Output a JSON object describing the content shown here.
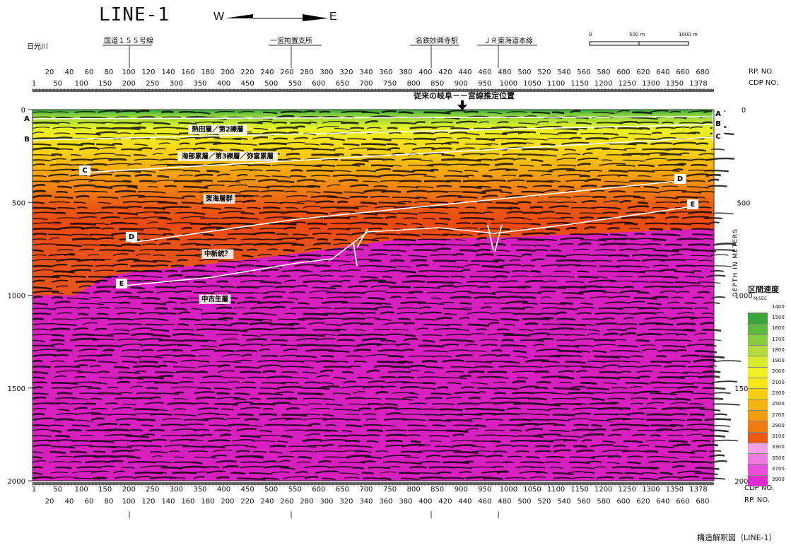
{
  "title": "LINE-1",
  "direction": {
    "west": "W",
    "east": "E"
  },
  "landmarks": [
    {
      "label": "日光川"
    },
    {
      "label": "国道１５５号線"
    },
    {
      "label": "一宮拘置支所"
    },
    {
      "label": "名鉄妙興寺駅"
    },
    {
      "label": "ＪＲ東海道本線"
    }
  ],
  "scale_bar": {
    "labels": [
      "0",
      "500 m",
      "1000 m"
    ]
  },
  "rp_label": "RP. NO.",
  "cdp_label": "CDP NO.",
  "rp_ticks": [
    "20",
    "40",
    "60",
    "80",
    "100",
    "120",
    "140",
    "160",
    "180",
    "200",
    "220",
    "240",
    "260",
    "280",
    "300",
    "320",
    "340",
    "360",
    "380",
    "400",
    "420",
    "440",
    "460",
    "480",
    "500",
    "520",
    "540",
    "560",
    "580",
    "600",
    "620",
    "640",
    "660",
    "680"
  ],
  "cdp_ticks": [
    "1",
    "50",
    "100",
    "150",
    "200",
    "250",
    "300",
    "350",
    "400",
    "450",
    "500",
    "550",
    "600",
    "650",
    "700",
    "750",
    "800",
    "850",
    "900",
    "950",
    "1000",
    "1050",
    "1100",
    "1150",
    "1200",
    "1250",
    "1300",
    "1350",
    "1378"
  ],
  "fault_note": "従来の岐阜－－宮線推定位置",
  "depth_axis": {
    "label": "DEPTH IN METERS",
    "ticks": [
      "0",
      "500",
      "1000",
      "1500",
      "2000"
    ]
  },
  "horizons": [
    "A",
    "B",
    "C",
    "D",
    "E"
  ],
  "units": [
    {
      "label": "熱田層／第2礫層"
    },
    {
      "label": "海部累層／第3礫層／弥富累層"
    },
    {
      "label": "東海層群"
    },
    {
      "label": "中新統？"
    },
    {
      "label": "中古生層"
    }
  ],
  "legend": {
    "title": "区間速度",
    "unit": "M/SEC",
    "entries": [
      {
        "value": "1400",
        "color": "#ffffff"
      },
      {
        "value": "1500",
        "color": "#3aa43a"
      },
      {
        "value": "1600",
        "color": "#5cbb3c"
      },
      {
        "value": "1700",
        "color": "#86cc3e"
      },
      {
        "value": "1800",
        "color": "#b2dc3c"
      },
      {
        "value": "1900",
        "color": "#d8ea2e"
      },
      {
        "value": "2000",
        "color": "#f2f222"
      },
      {
        "value": "2100",
        "color": "#f8e818"
      },
      {
        "value": "2300",
        "color": "#f9d010"
      },
      {
        "value": "2500",
        "color": "#f7b40c"
      },
      {
        "value": "2700",
        "color": "#f49a0c"
      },
      {
        "value": "2900",
        "color": "#f07a10"
      },
      {
        "value": "3100",
        "color": "#ec5a12"
      },
      {
        "value": "3300",
        "color": "#f6a0e8"
      },
      {
        "value": "3500",
        "color": "#f07ae0"
      },
      {
        "value": "3700",
        "color": "#ea4ed8"
      },
      {
        "value": "3900",
        "color": "#e02ccc"
      }
    ]
  },
  "caption": "構造解釈図（LINE-1）"
}
